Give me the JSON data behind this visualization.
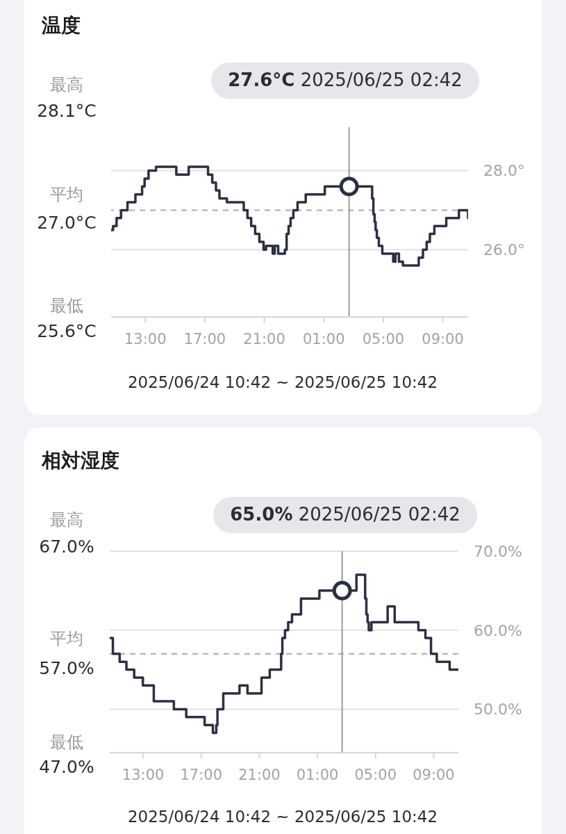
{
  "chart_data": [
    {
      "type": "step",
      "title": "温度",
      "xlabel": "2025/06/24 10:42 ~ 2025/06/25 10:42",
      "series": [
        {
          "color": "#2d3040",
          "x": [
            "2025-06-24T10:42",
            "2025-06-24T10:50",
            "2025-06-24T11:04",
            "2025-06-24T11:22",
            "2025-06-24T11:48",
            "2025-06-24T12:20",
            "2025-06-24T12:47",
            "2025-06-24T12:57",
            "2025-06-24T13:13",
            "2025-06-24T13:43",
            "2025-06-24T15:05",
            "2025-06-24T15:55",
            "2025-06-24T17:13",
            "2025-06-24T17:30",
            "2025-06-24T17:45",
            "2025-06-24T17:59",
            "2025-06-24T18:29",
            "2025-06-24T19:37",
            "2025-06-24T19:52",
            "2025-06-24T20:07",
            "2025-06-24T20:23",
            "2025-06-24T20:40",
            "2025-06-24T20:57",
            "2025-06-24T21:07",
            "2025-06-24T21:34",
            "2025-06-24T21:42",
            "2025-06-24T21:56",
            "2025-06-24T22:23",
            "2025-06-24T22:30",
            "2025-06-24T22:38",
            "2025-06-24T22:46",
            "2025-06-24T22:57",
            "2025-06-24T23:14",
            "2025-06-24T23:47",
            "2025-06-25T01:04",
            "2025-06-25T04:15",
            "2025-06-25T04:20",
            "2025-06-25T04:25",
            "2025-06-25T04:29",
            "2025-06-25T04:34",
            "2025-06-25T04:42",
            "2025-06-25T04:56",
            "2025-06-25T05:40",
            "2025-06-25T05:49",
            "2025-06-25T06:03",
            "2025-06-25T06:19",
            "2025-06-25T07:23",
            "2025-06-25T07:40",
            "2025-06-25T07:55",
            "2025-06-25T08:08",
            "2025-06-25T08:26",
            "2025-06-25T09:14",
            "2025-06-25T10:05",
            "2025-06-25T10:42"
          ],
          "values": [
            26.5,
            26.6,
            26.8,
            27.0,
            27.2,
            27.4,
            27.6,
            27.8,
            28.0,
            28.1,
            27.9,
            28.1,
            27.9,
            27.7,
            27.5,
            27.3,
            27.2,
            27.0,
            26.8,
            26.6,
            26.4,
            26.2,
            26.0,
            26.1,
            25.9,
            26.1,
            25.9,
            26.0,
            26.4,
            26.6,
            26.8,
            27.0,
            27.2,
            27.4,
            27.6,
            27.3,
            26.9,
            26.7,
            26.5,
            26.3,
            26.1,
            25.9,
            25.7,
            25.9,
            25.7,
            25.6,
            25.8,
            26.0,
            26.2,
            26.4,
            26.6,
            26.8,
            27.0,
            26.8
          ]
        },
        {
          "type": "scatter",
          "color": "#2d3040",
          "marker": "circle",
          "x": [
            "2025-06-25T02:42"
          ],
          "values": [
            27.6
          ]
        }
      ],
      "xlim": [
        "2025-06-24T10:42",
        "2025-06-25T10:42"
      ],
      "xticks": [
        {
          "value": "2025-06-24T13:00",
          "label": "13:00"
        },
        {
          "value": "2025-06-24T17:00",
          "label": "17:00"
        },
        {
          "value": "2025-06-24T21:00",
          "label": "21:00"
        },
        {
          "value": "2025-06-25T01:00",
          "label": "01:00"
        },
        {
          "value": "2025-06-25T05:00",
          "label": "05:00"
        },
        {
          "value": "2025-06-25T09:00",
          "label": "09:00"
        }
      ],
      "ylim": [
        24.3,
        29.1
      ],
      "yticks": [
        {
          "value": 26,
          "label": "26.0°"
        },
        {
          "value": 28,
          "label": "28.0°"
        }
      ],
      "grid": "y",
      "ref_lines": [
        {
          "axis": "y",
          "value": 27.0,
          "line_style": "dashed",
          "color": "#ababab"
        },
        {
          "axis": "x",
          "value": "2025-06-25T02:42",
          "color": "#9c9c9c"
        }
      ],
      "annotations": [
        "27.6°C 2025/06/25 02:42",
        "最高",
        "28.1°C",
        "平均",
        "27.0°C",
        "最低",
        "25.6°C"
      ]
    },
    {
      "type": "step",
      "title": "相対湿度",
      "xlabel": "2025/06/24 10:42 ~ 2025/06/25 10:42",
      "series": [
        {
          "color": "#2d3040",
          "x": [
            "2025-06-24T10:42",
            "2025-06-24T10:55",
            "2025-06-24T11:23",
            "2025-06-24T11:51",
            "2025-06-24T12:23",
            "2025-06-24T12:59",
            "2025-06-24T13:44",
            "2025-06-24T15:07",
            "2025-06-24T15:58",
            "2025-06-24T17:14",
            "2025-06-24T17:48",
            "2025-06-24T18:02",
            "2025-06-24T18:07",
            "2025-06-24T18:31",
            "2025-06-24T19:38",
            "2025-06-24T20:11",
            "2025-06-24T21:09",
            "2025-06-24T21:43",
            "2025-06-24T22:30",
            "2025-06-24T22:35",
            "2025-06-24T22:46",
            "2025-06-24T22:59",
            "2025-06-24T23:15",
            "2025-06-24T23:52",
            "2025-06-25T01:08",
            "2025-06-25T03:41",
            "2025-06-25T04:17",
            "2025-06-25T04:22",
            "2025-06-25T04:27",
            "2025-06-25T04:32",
            "2025-06-25T04:43",
            "2025-06-25T05:50",
            "2025-06-25T06:19",
            "2025-06-25T07:57",
            "2025-06-25T08:26",
            "2025-06-25T08:49",
            "2025-06-25T09:13",
            "2025-06-25T10:06",
            "2025-06-25T10:42"
          ],
          "values": [
            59,
            57,
            56,
            55,
            54,
            53,
            51,
            50,
            49,
            48,
            47,
            48,
            50,
            52,
            53,
            52,
            54,
            55,
            57,
            59,
            60,
            61,
            62,
            64,
            65,
            67,
            64,
            62,
            61,
            60,
            61,
            63,
            61,
            60,
            59,
            57,
            56,
            55,
            55
          ]
        },
        {
          "type": "scatter",
          "color": "#2d3040",
          "marker": "circle",
          "x": [
            "2025-06-25T02:42"
          ],
          "values": [
            65
          ]
        }
      ],
      "xlim": [
        "2025-06-24T10:42",
        "2025-06-25T10:42"
      ],
      "xticks": [
        {
          "value": "2025-06-24T13:00",
          "label": "13:00"
        },
        {
          "value": "2025-06-24T17:00",
          "label": "17:00"
        },
        {
          "value": "2025-06-24T21:00",
          "label": "21:00"
        },
        {
          "value": "2025-06-25T01:00",
          "label": "01:00"
        },
        {
          "value": "2025-06-25T05:00",
          "label": "05:00"
        },
        {
          "value": "2025-06-25T09:00",
          "label": "09:00"
        }
      ],
      "ylim": [
        44.5,
        70
      ],
      "yticks": [
        {
          "value": 50,
          "label": "50.0%"
        },
        {
          "value": 60,
          "label": "60.0%"
        },
        {
          "value": 70,
          "label": "70.0%"
        }
      ],
      "grid": "y",
      "ref_lines": [
        {
          "axis": "y",
          "value": 57,
          "line_style": "dashed",
          "color": "#ababab"
        },
        {
          "axis": "x",
          "value": "2025-06-25T02:42",
          "color": "#9c9c9c"
        }
      ],
      "annotations": [
        "65.0% 2025/06/25 02:42",
        "最高",
        "67.0%",
        "平均",
        "57.0%",
        "最低",
        "47.0%"
      ]
    }
  ]
}
